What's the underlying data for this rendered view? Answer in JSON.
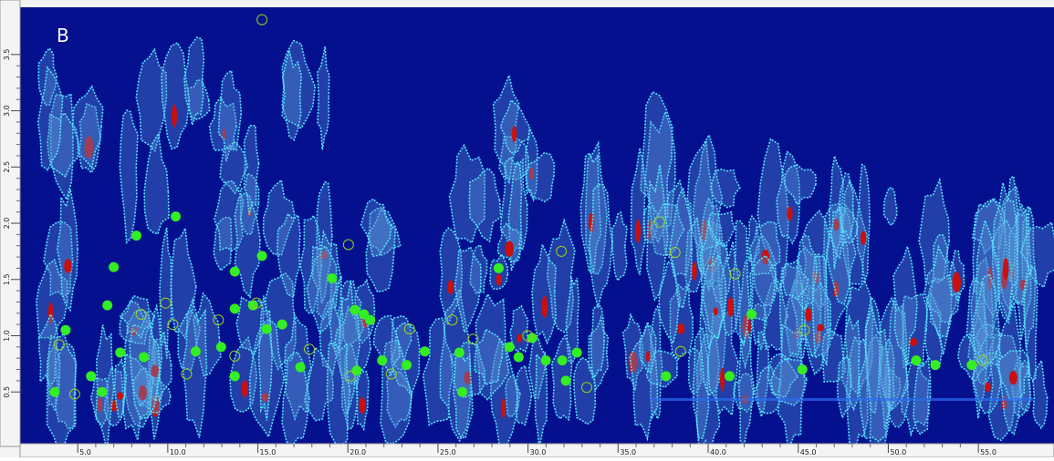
{
  "chart_data": {
    "type": "scatter",
    "title": "B",
    "background": "#05108f",
    "xlim": [
      1.8,
      59.2
    ],
    "ylim": [
      0.04,
      3.92
    ],
    "xticks": [
      {
        "value": 5,
        "label": "5.0"
      },
      {
        "value": 10,
        "label": "10.0"
      },
      {
        "value": 15,
        "label": "15.0"
      },
      {
        "value": 20,
        "label": "20.0"
      },
      {
        "value": 25,
        "label": "25.0"
      },
      {
        "value": 30,
        "label": "30.0"
      },
      {
        "value": 35,
        "label": "35.0"
      },
      {
        "value": 40,
        "label": "40.0"
      },
      {
        "value": 45,
        "label": "45.0"
      },
      {
        "value": 50,
        "label": "50.0"
      },
      {
        "value": 55,
        "label": "55.0"
      }
    ],
    "yticks": [
      {
        "value": 0.5,
        "label": "0.5"
      },
      {
        "value": 1,
        "label": "1.0"
      },
      {
        "value": 1.5,
        "label": "1.5"
      },
      {
        "value": 2,
        "label": "2.0"
      },
      {
        "value": 2.5,
        "label": "2.5"
      },
      {
        "value": 3,
        "label": "3.0"
      },
      {
        "value": 3.5,
        "label": "3.5"
      }
    ],
    "series": [
      {
        "color": "#33ee22",
        "marker": "filled",
        "x": [
          3.72,
          4.33,
          5.74,
          6.35,
          6.65,
          7.0,
          7.36,
          8.26,
          8.67,
          10.44,
          11.55,
          12.96,
          13.72,
          13.72,
          13.72,
          14.73,
          15.23,
          15.49,
          16.35,
          17.36,
          19.12,
          20.39,
          20.89,
          21.24,
          20.49,
          21.9,
          23.26,
          24.27,
          26.19,
          26.35,
          28.37,
          28.97,
          29.48,
          30.23,
          30.99,
          31.9,
          32.1,
          32.71,
          37.66,
          41.19,
          42.41,
          45.23,
          51.55,
          52.61,
          54.63
        ],
        "values": [
          0.5,
          1.05,
          0.64,
          0.5,
          1.27,
          1.61,
          0.85,
          1.89,
          0.81,
          2.06,
          0.86,
          0.9,
          1.57,
          1.24,
          0.64,
          1.27,
          1.71,
          1.06,
          1.1,
          0.72,
          1.51,
          1.23,
          1.19,
          1.14,
          0.69,
          0.78,
          0.74,
          0.86,
          0.85,
          0.5,
          1.6,
          0.9,
          0.81,
          0.98,
          0.78,
          0.78,
          0.6,
          0.85,
          0.64,
          0.64,
          1.19,
          0.7,
          0.78,
          0.74,
          0.74
        ]
      },
      {
        "color": "#9ad21a",
        "marker": "open",
        "x": [
          15.23,
          3.97,
          4.83,
          8.52,
          9.88,
          10.28,
          11.04,
          12.81,
          13.72,
          14.93,
          17.86,
          20.03,
          20.13,
          22.41,
          23.42,
          25.79,
          26.95,
          29.98,
          31.85,
          33.26,
          37.31,
          38.16,
          41.5,
          38.47,
          45.34,
          55.23
        ],
        "values": [
          3.81,
          0.92,
          0.48,
          1.19,
          1.29,
          1.1,
          0.66,
          1.14,
          0.82,
          1.29,
          0.88,
          1.81,
          0.64,
          0.66,
          1.06,
          1.14,
          0.97,
          1.0,
          1.75,
          0.54,
          2.01,
          1.74,
          1.55,
          0.86,
          1.05,
          0.78
        ]
      }
    ]
  }
}
